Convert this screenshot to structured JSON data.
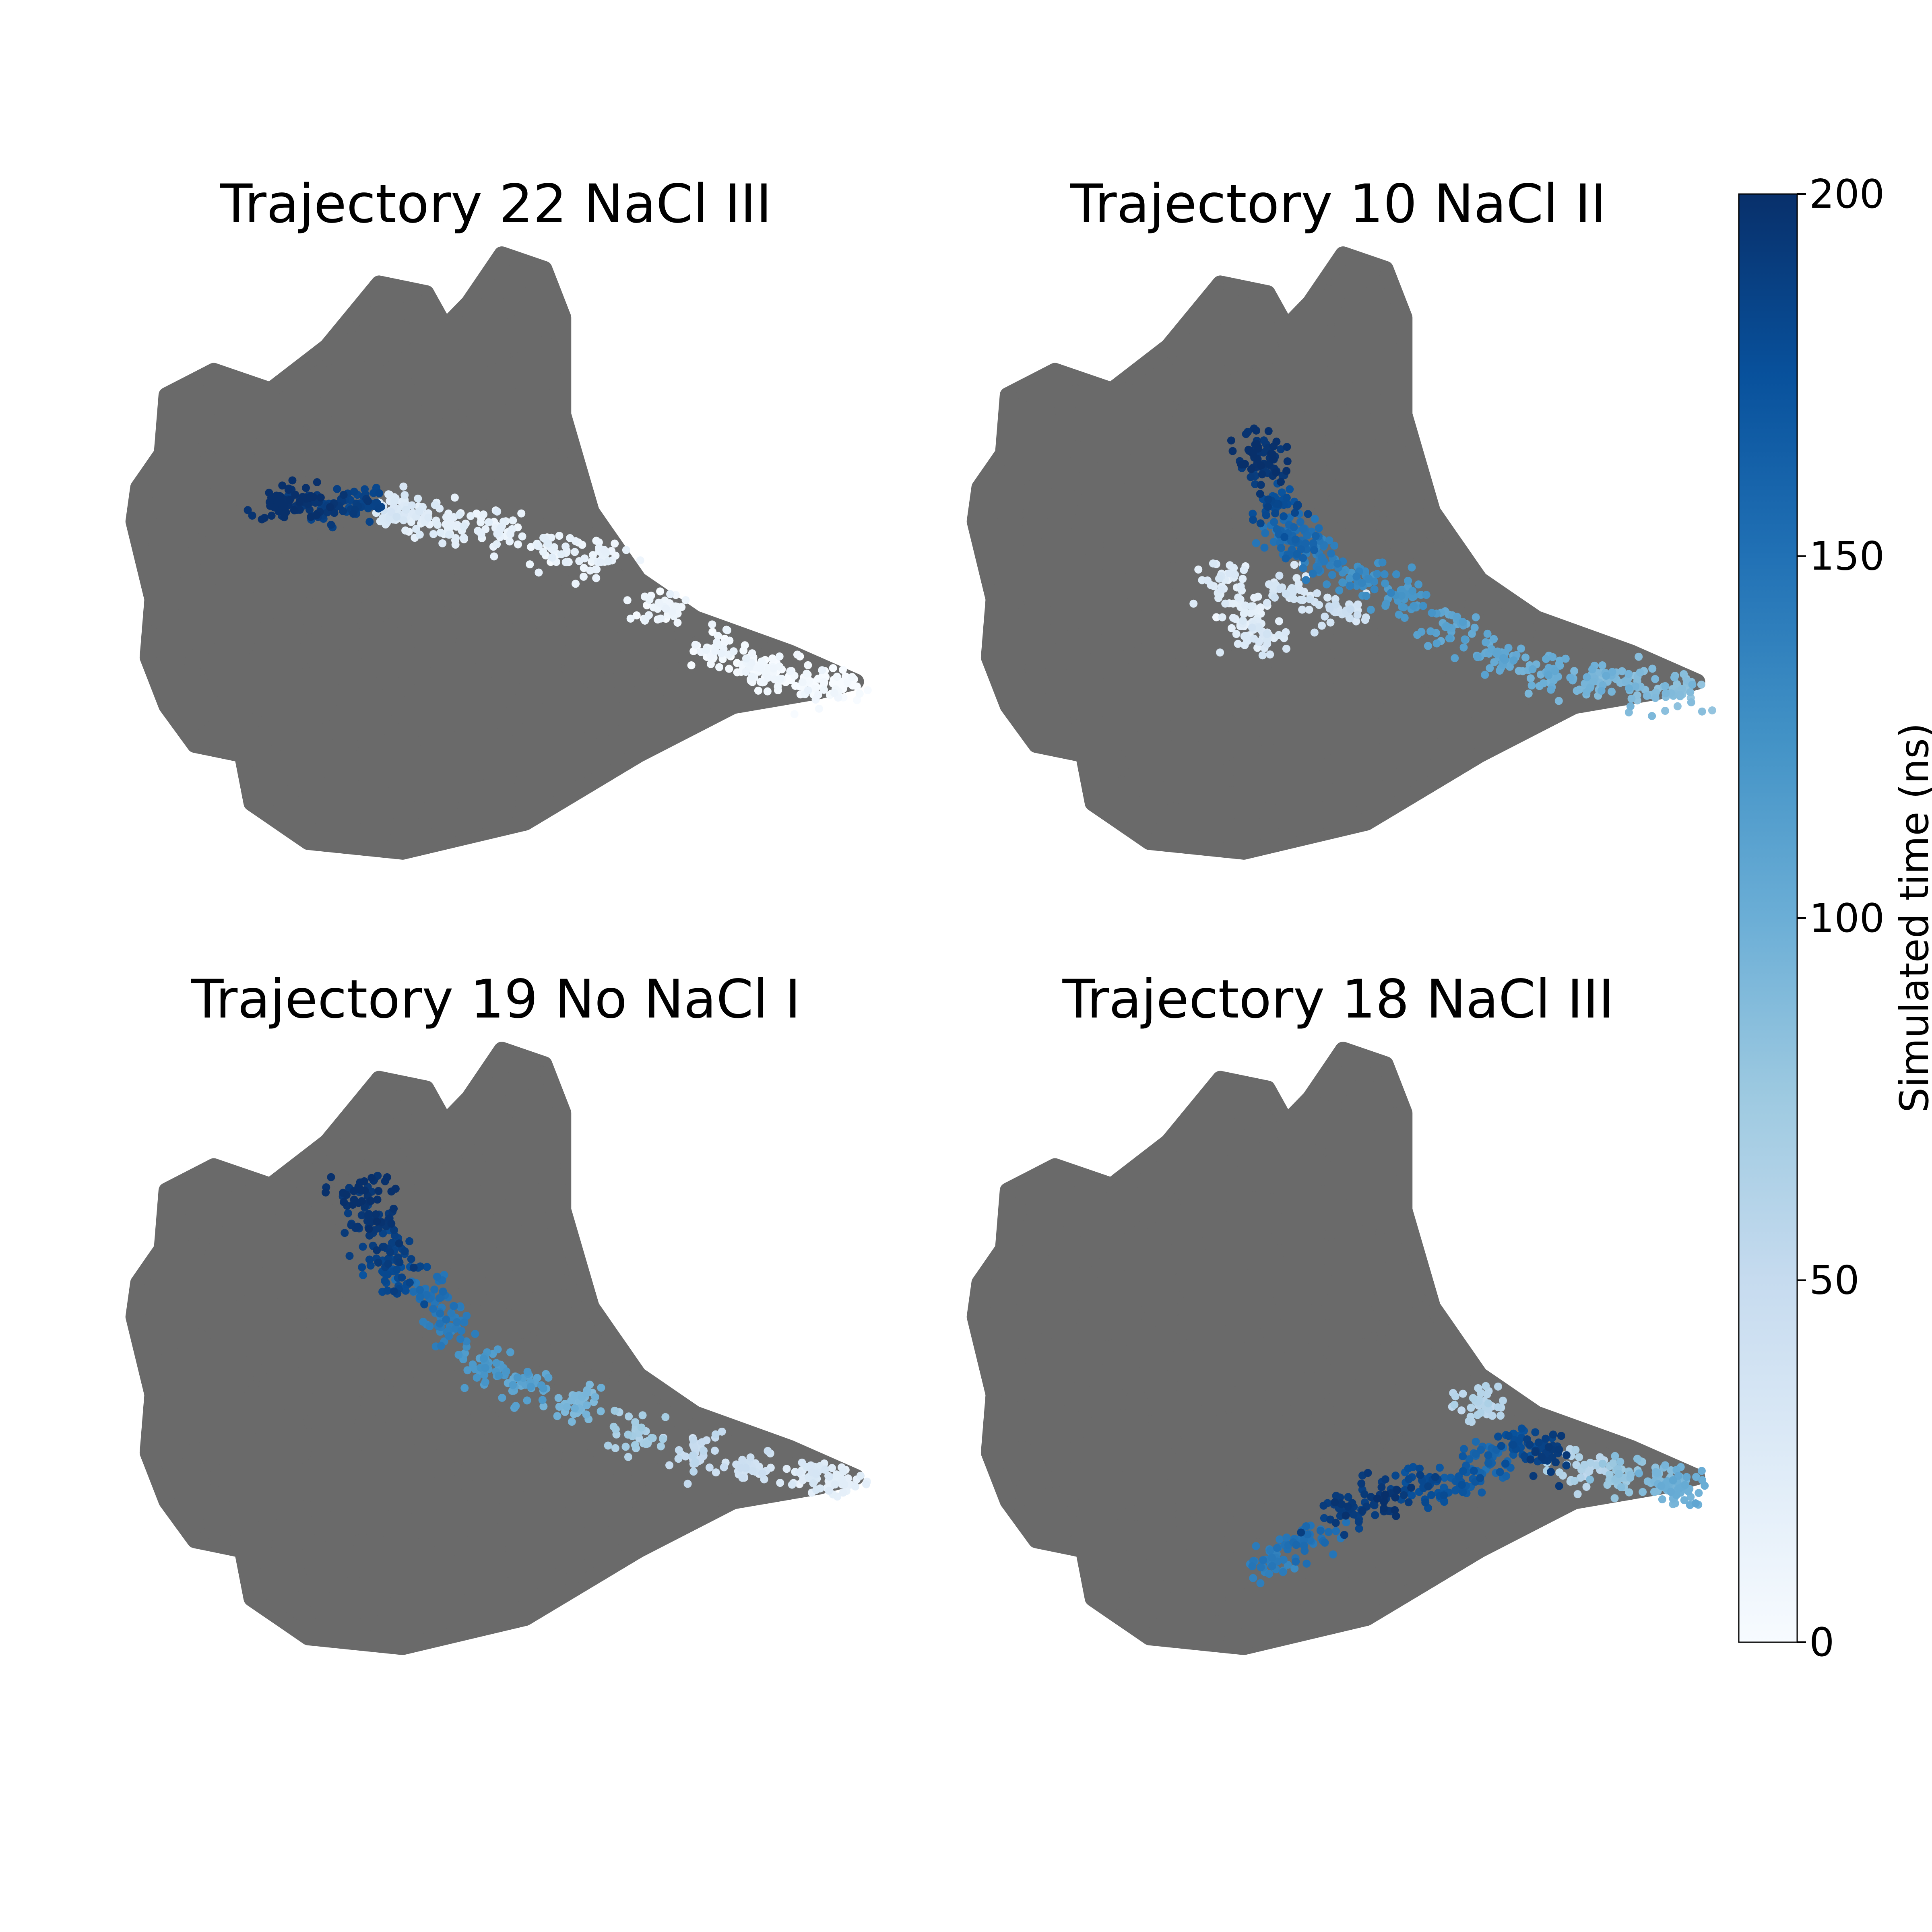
{
  "chart_data": [
    {
      "type": "scatter",
      "title": "Trajectory 22 NaCl III",
      "background": "landscape",
      "series": [
        {
          "points": [
            [
              0.0,
              0.48
            ],
            [
              0.25,
              0.5
            ],
            [
              0.5,
              0.46
            ],
            [
              0.9,
              0.48
            ],
            [
              1.2,
              0.42
            ],
            [
              1.4,
              0.38
            ],
            [
              1.8,
              0.28
            ],
            [
              2.3,
              0.22
            ],
            [
              2.9,
              0.0
            ],
            [
              3.4,
              -0.1
            ],
            [
              4.0,
              -0.6
            ],
            [
              4.6,
              -1.0
            ],
            [
              5.0,
              -1.2
            ],
            [
              5.2,
              -1.3
            ],
            [
              5.6,
              -1.35
            ],
            [
              5.9,
              -1.4
            ]
          ],
          "times": [
            200,
            198,
            190,
            185,
            30,
            25,
            18,
            15,
            14,
            12,
            10,
            8,
            6,
            4,
            2,
            0
          ]
        }
      ]
    },
    {
      "type": "scatter",
      "title": "Trajectory 10 NaCl II",
      "background": "landscape",
      "series": [
        {
          "points": [
            [
              1.3,
              -0.65
            ],
            [
              1.1,
              -0.3
            ],
            [
              1.5,
              -0.9
            ],
            [
              1.8,
              -0.4
            ],
            [
              2.3,
              -0.6
            ],
            [
              1.8,
              0.1
            ],
            [
              1.6,
              0.5
            ],
            [
              1.5,
              0.85
            ],
            [
              1.45,
              1.05
            ],
            [
              1.8,
              0.2
            ],
            [
              2.1,
              -0.1
            ],
            [
              2.5,
              -0.3
            ],
            [
              3.0,
              -0.5
            ],
            [
              3.5,
              -0.8
            ],
            [
              4.0,
              -1.1
            ],
            [
              4.5,
              -1.25
            ],
            [
              5.0,
              -1.35
            ],
            [
              5.5,
              -1.4
            ],
            [
              5.9,
              -1.45
            ]
          ],
          "times": [
            20,
            25,
            30,
            35,
            40,
            160,
            180,
            195,
            200,
            150,
            140,
            130,
            120,
            110,
            105,
            100,
            95,
            90,
            85
          ]
        }
      ]
    },
    {
      "type": "scatter",
      "title": "Trajectory 19 No NaCl I",
      "background": "landscape",
      "series": [
        {
          "points": [
            [
              0.9,
              1.6
            ],
            [
              1.0,
              1.3
            ],
            [
              1.15,
              1.0
            ],
            [
              1.25,
              0.7
            ],
            [
              1.6,
              0.5
            ],
            [
              1.8,
              0.2
            ],
            [
              2.2,
              -0.2
            ],
            [
              2.6,
              -0.4
            ],
            [
              3.2,
              -0.6
            ],
            [
              3.8,
              -0.9
            ],
            [
              4.4,
              -1.1
            ],
            [
              5.0,
              -1.25
            ],
            [
              5.6,
              -1.35
            ],
            [
              5.9,
              -1.4
            ]
          ],
          "times": [
            200,
            195,
            190,
            180,
            150,
            140,
            120,
            110,
            90,
            70,
            50,
            40,
            30,
            20
          ]
        }
      ]
    },
    {
      "type": "scatter",
      "title": "Trajectory 18 NaCl III",
      "background": "landscape",
      "series": [
        {
          "points": [
            [
              1.6,
              -2.2
            ],
            [
              2.0,
              -2.0
            ],
            [
              2.4,
              -1.7
            ],
            [
              2.8,
              -1.55
            ],
            [
              3.2,
              -1.45
            ],
            [
              3.6,
              -1.4
            ],
            [
              3.9,
              -1.2
            ],
            [
              4.2,
              -1.0
            ],
            [
              4.5,
              -1.1
            ],
            [
              4.9,
              -1.25
            ],
            [
              5.3,
              -1.35
            ],
            [
              5.7,
              -1.4
            ],
            [
              5.95,
              -1.45
            ],
            [
              3.8,
              -0.6
            ]
          ],
          "times": [
            140,
            150,
            190,
            195,
            180,
            170,
            160,
            175,
            190,
            60,
            80,
            90,
            100,
            60
          ]
        }
      ]
    }
  ],
  "colorbar": {
    "label": "Simulated time (ns)",
    "min": 0,
    "max": 200,
    "ticks": [
      "0",
      "50",
      "100",
      "150",
      "200"
    ],
    "colormap": [
      "#f7fbff",
      "#deebf7",
      "#c6dbef",
      "#9ecae1",
      "#6baed6",
      "#4292c6",
      "#2171b5",
      "#08519c",
      "#08306b"
    ]
  },
  "colors": {
    "landscape": "#6a6a6a"
  }
}
